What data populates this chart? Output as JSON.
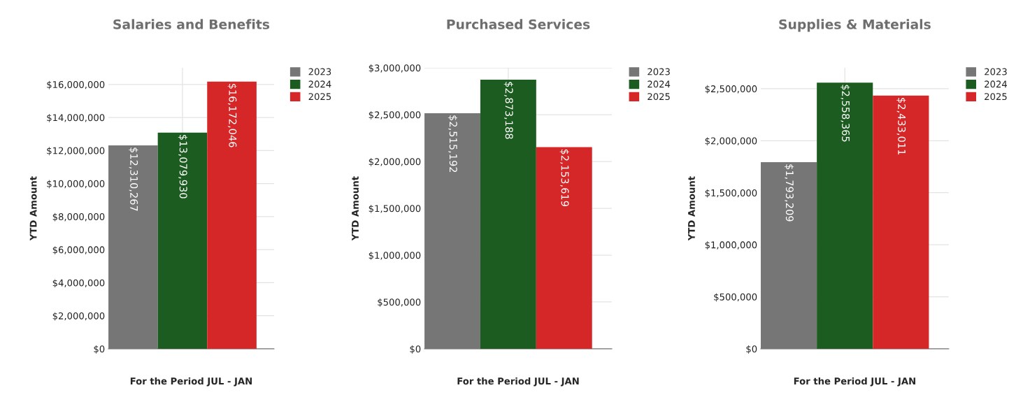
{
  "chart_data": [
    {
      "type": "bar",
      "title": "Salaries and Benefits",
      "xlabel": "For the Period JUL - JAN",
      "ylabel": "YTD Amount",
      "categories": [
        null
      ],
      "series": [
        {
          "name": "2023",
          "color": "#767676",
          "values": [
            12310267
          ],
          "value_labels": [
            "$12,310,267"
          ]
        },
        {
          "name": "2024",
          "color": "#1d5c20",
          "values": [
            13079930
          ],
          "value_labels": [
            "$13,079,930"
          ]
        },
        {
          "name": "2025",
          "color": "#d62728",
          "values": [
            16172046
          ],
          "value_labels": [
            "$16,172,046"
          ]
        }
      ],
      "ylim": [
        0,
        17000000
      ],
      "yticks": [
        {
          "value": 0,
          "label": "$0"
        },
        {
          "value": 2000000,
          "label": "$2,000,000"
        },
        {
          "value": 4000000,
          "label": "$4,000,000"
        },
        {
          "value": 6000000,
          "label": "$6,000,000"
        },
        {
          "value": 8000000,
          "label": "$8,000,000"
        },
        {
          "value": 10000000,
          "label": "$10,000,000"
        },
        {
          "value": 12000000,
          "label": "$12,000,000"
        },
        {
          "value": 14000000,
          "label": "$14,000,000"
        },
        {
          "value": 16000000,
          "label": "$16,000,000"
        }
      ],
      "grid": true,
      "legend": "top right"
    },
    {
      "type": "bar",
      "title": "Purchased Services",
      "xlabel": "For the Period JUL - JAN",
      "ylabel": "YTD Amount",
      "categories": [
        null
      ],
      "series": [
        {
          "name": "2023",
          "color": "#767676",
          "values": [
            2515192
          ],
          "value_labels": [
            "$2,515,192"
          ]
        },
        {
          "name": "2024",
          "color": "#1d5c20",
          "values": [
            2873188
          ],
          "value_labels": [
            "$2,873,188"
          ]
        },
        {
          "name": "2025",
          "color": "#d62728",
          "values": [
            2153619
          ],
          "value_labels": [
            "$2,153,619"
          ]
        }
      ],
      "ylim": [
        0,
        3000000
      ],
      "yticks": [
        {
          "value": 0,
          "label": "$0"
        },
        {
          "value": 500000,
          "label": "$500,000"
        },
        {
          "value": 1000000,
          "label": "$1,000,000"
        },
        {
          "value": 1500000,
          "label": "$1,500,000"
        },
        {
          "value": 2000000,
          "label": "$2,000,000"
        },
        {
          "value": 2500000,
          "label": "$2,500,000"
        },
        {
          "value": 3000000,
          "label": "$3,000,000"
        }
      ],
      "grid": true,
      "legend": "top right"
    },
    {
      "type": "bar",
      "title": "Supplies & Materials",
      "xlabel": "For the Period JUL - JAN",
      "ylabel": "YTD Amount",
      "categories": [
        null
      ],
      "series": [
        {
          "name": "2023",
          "color": "#767676",
          "values": [
            1793209
          ],
          "value_labels": [
            "$1,793,209"
          ]
        },
        {
          "name": "2024",
          "color": "#1d5c20",
          "values": [
            2558365
          ],
          "value_labels": [
            "$2,558,365"
          ]
        },
        {
          "name": "2025",
          "color": "#d62728",
          "values": [
            2433011
          ],
          "value_labels": [
            "$2,433,011"
          ]
        }
      ],
      "ylim": [
        0,
        2700000
      ],
      "yticks": [
        {
          "value": 0,
          "label": "$0"
        },
        {
          "value": 500000,
          "label": "$500,000"
        },
        {
          "value": 1000000,
          "label": "$1,000,000"
        },
        {
          "value": 1500000,
          "label": "$1,500,000"
        },
        {
          "value": 2000000,
          "label": "$2,000,000"
        },
        {
          "value": 2500000,
          "label": "$2,500,000"
        }
      ],
      "grid": true,
      "legend": "top right"
    }
  ]
}
